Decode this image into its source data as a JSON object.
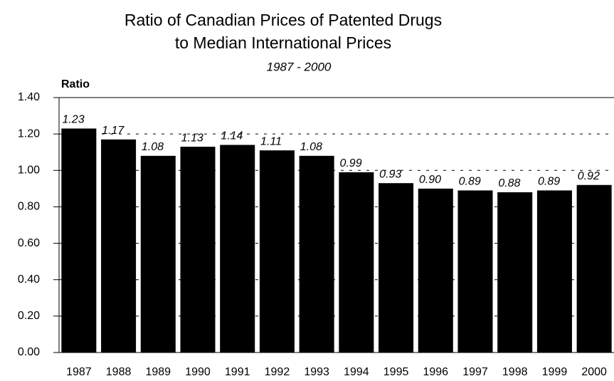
{
  "chart_data": {
    "type": "bar",
    "title": [
      "Ratio of Canadian Prices of Patented Drugs",
      "to Median International Prices"
    ],
    "subtitle": "1987 - 2000",
    "y_label": "Ratio",
    "categories": [
      "1987",
      "1988",
      "1989",
      "1990",
      "1991",
      "1992",
      "1993",
      "1994",
      "1995",
      "1996",
      "1997",
      "1998",
      "1999",
      "2000"
    ],
    "values": [
      1.23,
      1.17,
      1.08,
      1.13,
      1.14,
      1.11,
      1.08,
      0.99,
      0.93,
      0.9,
      0.89,
      0.88,
      0.89,
      0.92
    ],
    "value_labels": [
      "1.23",
      "1.17",
      "1.08",
      "1.13",
      "1.14",
      "1.11",
      "1.08",
      "0.99",
      "0.93",
      "0.90",
      "0.89",
      "0.88",
      "0.89",
      "0.92"
    ],
    "color": "#000000",
    "ylim": [
      0,
      1.4
    ],
    "yticks": [
      {
        "value": 0,
        "label": "0.00"
      },
      {
        "value": 0.2,
        "label": "0.20"
      },
      {
        "value": 0.4,
        "label": "0.40"
      },
      {
        "value": 0.6,
        "label": "0.60"
      },
      {
        "value": 0.8,
        "label": "0.80"
      },
      {
        "value": 1.0,
        "label": "1.00"
      },
      {
        "value": 1.2,
        "label": "1.20"
      },
      {
        "value": 1.4,
        "label": "1.40"
      }
    ],
    "grid": true
  }
}
